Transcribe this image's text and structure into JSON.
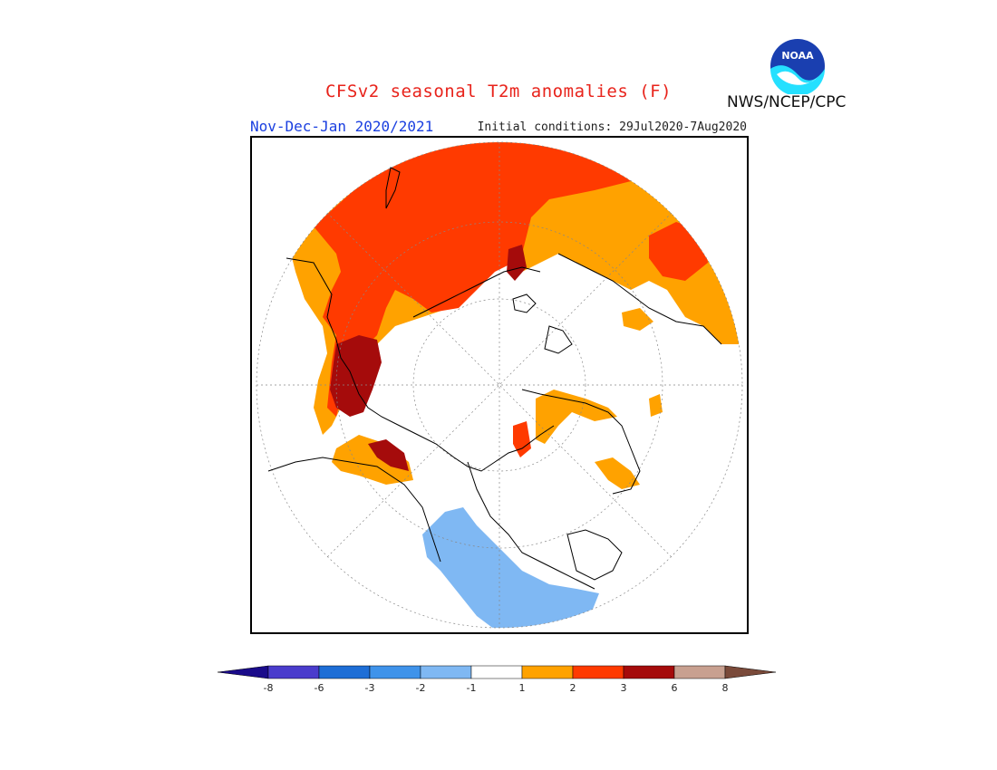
{
  "title": "CFSv2 seasonal T2m anomalies (F)",
  "period": "Nov-Dec-Jan 2020/2021",
  "initial_conditions": "Initial conditions: 29Jul2020-7Aug2020",
  "organization": "NWS/NCEP/CPC",
  "logo_text": "NOAA",
  "colorbar": {
    "ticks": [
      "-8",
      "-6",
      "-3",
      "-2",
      "-1",
      "1",
      "2",
      "3",
      "6",
      "8"
    ],
    "colors": [
      "#1a0b8a",
      "#4a3ccc",
      "#1e6ed6",
      "#3f93ea",
      "#7fb8f3",
      "#ffffff",
      "#ffa200",
      "#ff3a00",
      "#a50b0b",
      "#c8a090",
      "#7a4a3a"
    ]
  },
  "map_colors": {
    "warm_1_2": "#ffa200",
    "warm_2_3": "#ff3a00",
    "warm_3_6": "#a50b0b",
    "cool_m2_m1": "#7fb8f3"
  }
}
